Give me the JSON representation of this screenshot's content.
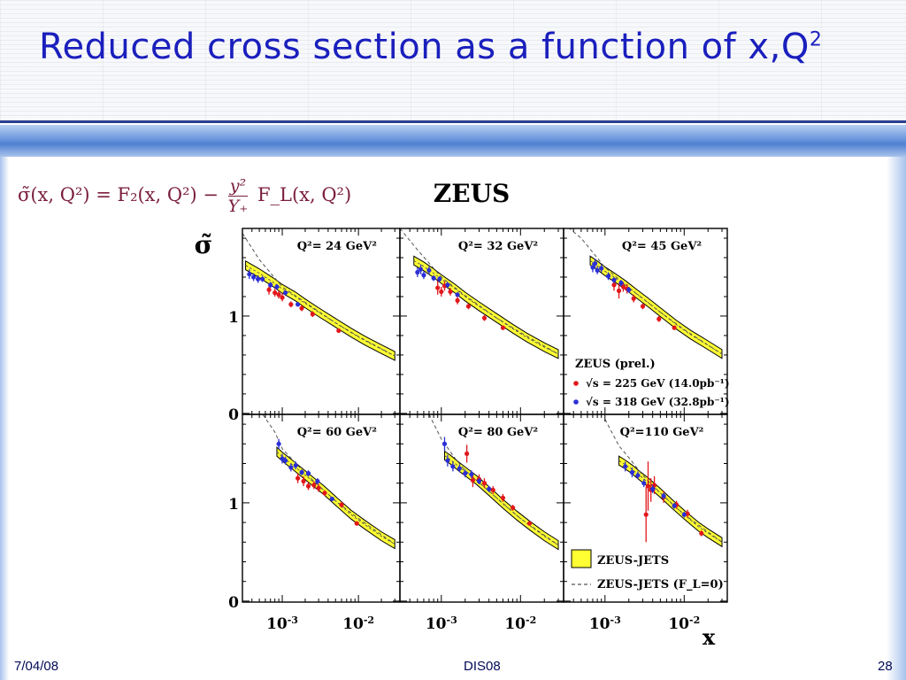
{
  "slide": {
    "title": "Reduced cross section as a function of x,Q",
    "title_sup": "2",
    "formula": {
      "lhs": "σ̃(x, Q²) = F₂(x, Q²) −",
      "frac_num": "y²",
      "frac_den": "Y₊",
      "rhs": "F_L(x, Q²)"
    },
    "footer": {
      "date": "7/04/08",
      "center": "DIS08",
      "page": "28"
    },
    "colors": {
      "title": "#1a1fbd",
      "formula": "#7a1d3d",
      "footer": "#000a55"
    }
  },
  "chart_data": {
    "type": "scatter",
    "figure_title": "ZEUS",
    "ylabel": "σ̃",
    "xlabel": "x",
    "xscale": "log",
    "xlim": [
      0.0003,
      0.035
    ],
    "ylim": [
      -0.01,
      1.9
    ],
    "xtick_labels": [
      {
        "value": 0.001,
        "label": "10^-3"
      },
      {
        "value": 0.01,
        "label": "10^-2"
      }
    ],
    "ytick_labels": [
      {
        "value": 0,
        "label": "0"
      },
      {
        "value": 1,
        "label": "1"
      }
    ],
    "legend_data": {
      "title": "ZEUS (prel.)",
      "entries": [
        {
          "label": "√s = 225 GeV (14.0pb⁻¹)",
          "color": "#e2171b"
        },
        {
          "label": "√s = 318 GeV (32.8pb⁻¹)",
          "color": "#2b2fd6"
        }
      ]
    },
    "legend_theory": {
      "entries": [
        {
          "label": "ZEUS-JETS",
          "style": "band",
          "color": "#ffff33"
        },
        {
          "label": "ZEUS-JETS (F_L=0)",
          "style": "dashed"
        }
      ]
    },
    "panels": [
      {
        "label": "Q²= 24 GeV²",
        "band_x": [
          0.00033,
          0.0005,
          0.00075,
          0.001,
          0.0015,
          0.002,
          0.003,
          0.005,
          0.008,
          0.012,
          0.02,
          0.03
        ],
        "band_y": [
          1.52,
          1.44,
          1.35,
          1.28,
          1.2,
          1.13,
          1.04,
          0.93,
          0.83,
          0.75,
          0.66,
          0.59
        ],
        "band_half_width": 0.045,
        "fl0_x": [
          0.0003,
          0.0005,
          0.001,
          0.002,
          0.005,
          0.01,
          0.03
        ],
        "fl0_y": [
          1.85,
          1.58,
          1.3,
          1.14,
          0.93,
          0.79,
          0.59
        ],
        "red": [
          [
            0.00067,
            1.27
          ],
          [
            0.0008,
            1.24
          ],
          [
            0.0009,
            1.22
          ],
          [
            0.001,
            1.19
          ],
          [
            0.0013,
            1.12
          ],
          [
            0.0018,
            1.08
          ],
          [
            0.0025,
            1.02
          ],
          [
            0.0055,
            0.85
          ]
        ],
        "red_err": [
          0.05,
          0.04,
          0.04,
          0.04,
          0.03,
          0.03,
          0.03,
          0.02
        ],
        "blue": [
          [
            0.00037,
            1.43
          ],
          [
            0.00042,
            1.4
          ],
          [
            0.00048,
            1.38
          ],
          [
            0.00055,
            1.38
          ],
          [
            0.0007,
            1.32
          ],
          [
            0.00085,
            1.3
          ],
          [
            0.0011,
            1.24
          ],
          [
            0.0016,
            1.12
          ]
        ],
        "blue_err": [
          0.05,
          0.04,
          0.04,
          0.03,
          0.03,
          0.03,
          0.02,
          0.02
        ]
      },
      {
        "label": "Q²= 32 GeV²",
        "band_x": [
          0.00045,
          0.0006,
          0.0008,
          0.001,
          0.0015,
          0.002,
          0.003,
          0.005,
          0.008,
          0.012,
          0.02,
          0.03
        ],
        "band_y": [
          1.57,
          1.51,
          1.44,
          1.38,
          1.28,
          1.2,
          1.1,
          0.98,
          0.87,
          0.78,
          0.68,
          0.61
        ],
        "band_half_width": 0.045,
        "fl0_x": [
          0.0003,
          0.0005,
          0.001,
          0.002,
          0.005,
          0.01,
          0.03
        ],
        "fl0_y": [
          1.9,
          1.68,
          1.4,
          1.21,
          0.98,
          0.83,
          0.61
        ],
        "red": [
          [
            0.0009,
            1.29
          ],
          [
            0.001,
            1.25
          ],
          [
            0.0011,
            1.31
          ],
          [
            0.0013,
            1.25
          ],
          [
            0.0016,
            1.16
          ],
          [
            0.0022,
            1.1
          ],
          [
            0.0035,
            0.98
          ],
          [
            0.006,
            0.88
          ]
        ],
        "red_err": [
          0.07,
          0.05,
          0.05,
          0.04,
          0.04,
          0.03,
          0.03,
          0.02
        ],
        "blue": [
          [
            0.0005,
            1.45
          ],
          [
            0.00055,
            1.48
          ],
          [
            0.0006,
            1.42
          ],
          [
            0.0007,
            1.47
          ],
          [
            0.0008,
            1.39
          ],
          [
            0.00095,
            1.38
          ],
          [
            0.0012,
            1.32
          ],
          [
            0.0016,
            1.22
          ]
        ],
        "blue_err": [
          0.05,
          0.05,
          0.04,
          0.04,
          0.03,
          0.03,
          0.03,
          0.02
        ]
      },
      {
        "label": "Q²= 45 GeV²",
        "band_x": [
          0.00065,
          0.0008,
          0.001,
          0.0013,
          0.0018,
          0.0025,
          0.0035,
          0.005,
          0.008,
          0.012,
          0.02,
          0.03
        ],
        "band_y": [
          1.57,
          1.52,
          1.46,
          1.4,
          1.32,
          1.23,
          1.14,
          1.04,
          0.91,
          0.81,
          0.7,
          0.61
        ],
        "band_half_width": 0.045,
        "fl0_x": [
          0.0003,
          0.0005,
          0.001,
          0.002,
          0.005,
          0.01,
          0.03
        ],
        "fl0_y": [
          1.95,
          1.8,
          1.5,
          1.29,
          1.04,
          0.86,
          0.61
        ],
        "red": [
          [
            0.0013,
            1.32
          ],
          [
            0.0015,
            1.26
          ],
          [
            0.0017,
            1.3
          ],
          [
            0.0019,
            1.28
          ],
          [
            0.0023,
            1.18
          ],
          [
            0.003,
            1.1
          ],
          [
            0.0048,
            0.97
          ],
          [
            0.0075,
            0.88
          ]
        ],
        "red_err": [
          0.06,
          0.08,
          0.05,
          0.05,
          0.04,
          0.03,
          0.03,
          0.02
        ],
        "blue": [
          [
            0.0007,
            1.5
          ],
          [
            0.00075,
            1.54
          ],
          [
            0.0008,
            1.47
          ],
          [
            0.0009,
            1.49
          ],
          [
            0.0011,
            1.41
          ],
          [
            0.0013,
            1.37
          ],
          [
            0.0016,
            1.34
          ],
          [
            0.002,
            1.27
          ]
        ],
        "blue_err": [
          0.05,
          0.05,
          0.04,
          0.04,
          0.04,
          0.03,
          0.03,
          0.03
        ]
      },
      {
        "label": "Q²= 60 GeV²",
        "band_x": [
          0.00085,
          0.001,
          0.0013,
          0.0018,
          0.0025,
          0.0035,
          0.005,
          0.008,
          0.012,
          0.02,
          0.03
        ],
        "band_y": [
          1.52,
          1.47,
          1.4,
          1.31,
          1.22,
          1.13,
          1.02,
          0.88,
          0.78,
          0.66,
          0.58
        ],
        "band_half_width": 0.045,
        "fl0_x": [
          0.0005,
          0.0008,
          0.001,
          0.002,
          0.005,
          0.01,
          0.03
        ],
        "fl0_y": [
          1.95,
          1.72,
          1.55,
          1.3,
          1.02,
          0.84,
          0.58
        ],
        "red": [
          [
            0.0016,
            1.25
          ],
          [
            0.0019,
            1.22
          ],
          [
            0.0022,
            1.17
          ],
          [
            0.0026,
            1.18
          ],
          [
            0.003,
            1.15
          ],
          [
            0.0036,
            1.1
          ],
          [
            0.006,
            0.98
          ],
          [
            0.0095,
            0.79
          ]
        ],
        "red_err": [
          0.05,
          0.05,
          0.04,
          0.04,
          0.04,
          0.03,
          0.03,
          0.02
        ],
        "blue": [
          [
            0.0009,
            1.6
          ],
          [
            0.001,
            1.45
          ],
          [
            0.0011,
            1.43
          ],
          [
            0.0013,
            1.36
          ],
          [
            0.0015,
            1.38
          ],
          [
            0.0018,
            1.31
          ],
          [
            0.0022,
            1.3
          ],
          [
            0.0029,
            1.22
          ],
          [
            0.0045,
            1.04
          ]
        ],
        "blue_err": [
          0.05,
          0.05,
          0.04,
          0.04,
          0.04,
          0.03,
          0.03,
          0.03,
          0.02
        ]
      },
      {
        "label": "Q²= 80 GeV²",
        "band_x": [
          0.0011,
          0.0013,
          0.0016,
          0.002,
          0.0028,
          0.004,
          0.006,
          0.009,
          0.013,
          0.02,
          0.03
        ],
        "band_y": [
          1.48,
          1.44,
          1.38,
          1.32,
          1.23,
          1.12,
          0.99,
          0.87,
          0.77,
          0.66,
          0.57
        ],
        "band_half_width": 0.045,
        "fl0_x": [
          0.0007,
          0.001,
          0.0015,
          0.002,
          0.005,
          0.01,
          0.03
        ],
        "fl0_y": [
          1.9,
          1.65,
          1.45,
          1.33,
          1.05,
          0.84,
          0.57
        ],
        "red": [
          [
            0.0021,
            1.5
          ],
          [
            0.0025,
            1.23
          ],
          [
            0.003,
            1.24
          ],
          [
            0.0035,
            1.2
          ],
          [
            0.0045,
            1.13
          ],
          [
            0.006,
            1.05
          ],
          [
            0.008,
            0.95
          ],
          [
            0.013,
            0.79
          ]
        ],
        "red_err": [
          0.09,
          0.07,
          0.05,
          0.05,
          0.04,
          0.04,
          0.03,
          0.02
        ],
        "blue": [
          [
            0.0011,
            1.6
          ],
          [
            0.0012,
            1.43
          ],
          [
            0.0014,
            1.37
          ],
          [
            0.0017,
            1.35
          ],
          [
            0.002,
            1.3
          ],
          [
            0.0024,
            1.29
          ],
          [
            0.003,
            1.22
          ],
          [
            0.004,
            1.14
          ]
        ],
        "blue_err": [
          0.07,
          0.06,
          0.05,
          0.04,
          0.04,
          0.04,
          0.03,
          0.03
        ]
      },
      {
        "label": "Q²=110 GeV²",
        "band_x": [
          0.0015,
          0.0018,
          0.0022,
          0.0027,
          0.0035,
          0.005,
          0.007,
          0.01,
          0.015,
          0.02,
          0.03
        ],
        "band_y": [
          1.43,
          1.39,
          1.34,
          1.28,
          1.21,
          1.1,
          0.99,
          0.88,
          0.76,
          0.69,
          0.6
        ],
        "band_half_width": 0.045,
        "fl0_x": [
          0.001,
          0.0015,
          0.002,
          0.003,
          0.005,
          0.01,
          0.03
        ],
        "fl0_y": [
          1.85,
          1.58,
          1.46,
          1.28,
          1.1,
          0.88,
          0.6
        ],
        "red": [
          [
            0.0033,
            0.88
          ],
          [
            0.0035,
            1.17
          ],
          [
            0.0038,
            1.13
          ],
          [
            0.0042,
            1.18
          ],
          [
            0.0055,
            1.06
          ],
          [
            0.008,
            0.98
          ],
          [
            0.011,
            0.89
          ],
          [
            0.0165,
            0.69
          ]
        ],
        "red_err": [
          0.28,
          0.25,
          0.12,
          0.09,
          0.06,
          0.04,
          0.04,
          0.03
        ],
        "blue": [
          [
            0.0018,
            1.37
          ],
          [
            0.0022,
            1.31
          ],
          [
            0.0026,
            1.28
          ],
          [
            0.0031,
            1.2
          ],
          [
            0.004,
            1.14
          ],
          [
            0.0055,
            1.07
          ],
          [
            0.0075,
            0.97
          ],
          [
            0.01,
            0.88
          ]
        ],
        "blue_err": [
          0.05,
          0.05,
          0.04,
          0.04,
          0.04,
          0.03,
          0.03,
          0.03
        ]
      }
    ]
  }
}
